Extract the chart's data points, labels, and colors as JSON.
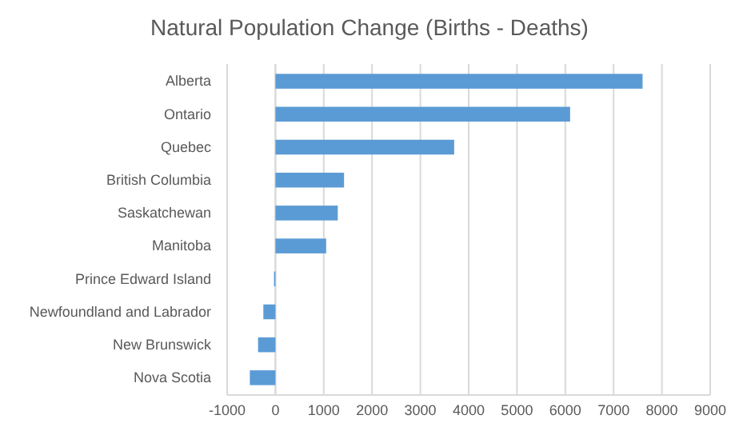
{
  "chart_data": {
    "type": "bar",
    "orientation": "horizontal",
    "title": "Natural Population Change (Births - Deaths)",
    "categories": [
      "Alberta",
      "Ontario",
      "Quebec",
      "British Columbia",
      "Saskatchewan",
      "Manitoba",
      "Prince Edward Island",
      "Newfoundland and Labrador",
      "New Brunswick",
      "Nova Scotia"
    ],
    "values": [
      7600,
      6100,
      3700,
      1420,
      1290,
      1050,
      -30,
      -250,
      -360,
      -530
    ],
    "color": "#5b9bd5",
    "xlim": [
      -1000,
      9000
    ],
    "xticks": [
      -1000,
      0,
      1000,
      2000,
      3000,
      4000,
      5000,
      6000,
      7000,
      8000,
      9000
    ],
    "grid": "x"
  }
}
